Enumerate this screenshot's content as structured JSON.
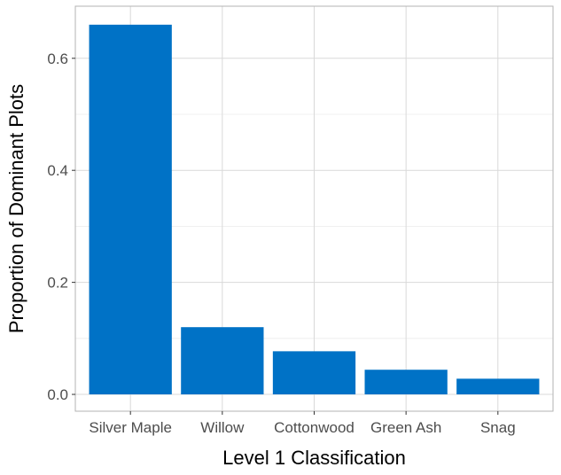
{
  "chart_data": {
    "type": "bar",
    "xlabel": "Level 1 Classification",
    "ylabel": "Proportion of Dominant Plots",
    "categories": [
      "Silver Maple",
      "Willow",
      "Cottonwood",
      "Green Ash",
      "Snag"
    ],
    "values": [
      0.66,
      0.12,
      0.077,
      0.044,
      0.028
    ],
    "ylim": [
      -0.03,
      0.693
    ],
    "yticks": [
      0.0,
      0.2,
      0.4,
      0.6
    ],
    "ytick_labels": [
      "0.0",
      "0.2",
      "0.4",
      "0.6"
    ],
    "bar_color": "#0072C6",
    "grid": true,
    "legend": "none"
  }
}
